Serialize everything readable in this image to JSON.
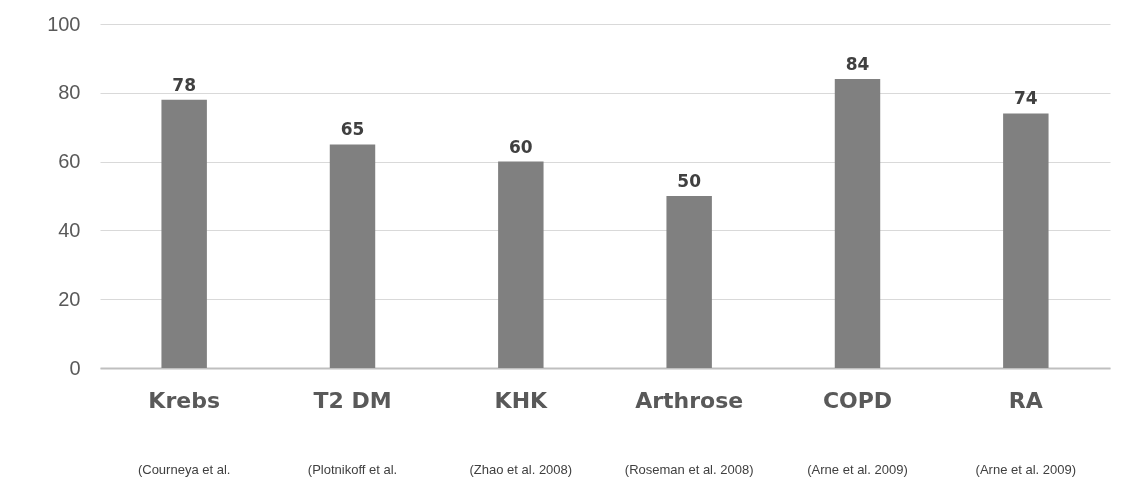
{
  "chart_data": {
    "type": "bar",
    "categories": [
      "Krebs",
      "T2 DM",
      "KHK",
      "Arthrose",
      "COPD",
      "RA"
    ],
    "values": [
      78,
      65,
      60,
      50,
      84,
      74
    ],
    "color": "#808080",
    "ylim": [
      0,
      100
    ],
    "yticks": [
      0,
      20,
      40,
      60,
      80,
      100
    ],
    "grid": "y",
    "data_labels": true,
    "annotations": [
      "(Courneya et al.",
      "(Plotnikoff et al.",
      "(Zhao et al. 2008)",
      "(Roseman et al. 2008)",
      "(Arne et al. 2009)",
      "(Arne et al. 2009)"
    ]
  }
}
